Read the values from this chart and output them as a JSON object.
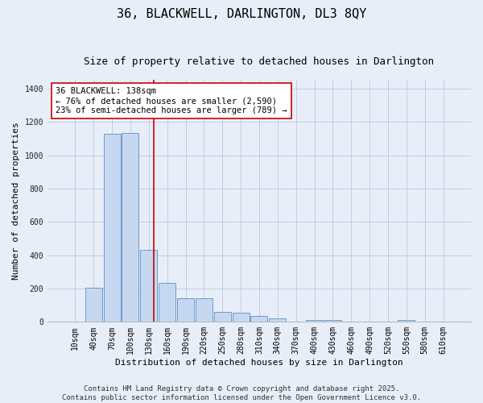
{
  "title": "36, BLACKWELL, DARLINGTON, DL3 8QY",
  "subtitle": "Size of property relative to detached houses in Darlington",
  "xlabel": "Distribution of detached houses by size in Darlington",
  "ylabel": "Number of detached properties",
  "bar_categories": [
    "10sqm",
    "40sqm",
    "70sqm",
    "100sqm",
    "130sqm",
    "160sqm",
    "190sqm",
    "220sqm",
    "250sqm",
    "280sqm",
    "310sqm",
    "340sqm",
    "370sqm",
    "400sqm",
    "430sqm",
    "460sqm",
    "490sqm",
    "520sqm",
    "550sqm",
    "580sqm",
    "610sqm"
  ],
  "bar_values": [
    0,
    205,
    1130,
    1135,
    430,
    235,
    140,
    140,
    60,
    55,
    35,
    20,
    0,
    12,
    12,
    0,
    0,
    0,
    12,
    0,
    0
  ],
  "bar_color": "#c5d8f0",
  "bar_edge_color": "#5b8fc9",
  "grid_color": "#b8c8e8",
  "background_color": "#e8eef8",
  "property_line_color": "#cc0000",
  "annotation_text": "36 BLACKWELL: 138sqm\n← 76% of detached houses are smaller (2,590)\n23% of semi-detached houses are larger (789) →",
  "annotation_box_color": "#ffffff",
  "annotation_box_edge": "#cc0000",
  "ylim": [
    0,
    1450
  ],
  "yticks": [
    0,
    200,
    400,
    600,
    800,
    1000,
    1200,
    1400
  ],
  "footer_line1": "Contains HM Land Registry data © Crown copyright and database right 2025.",
  "footer_line2": "Contains public sector information licensed under the Open Government Licence v3.0.",
  "title_fontsize": 11,
  "subtitle_fontsize": 9,
  "xlabel_fontsize": 8,
  "ylabel_fontsize": 8,
  "tick_fontsize": 7,
  "annotation_fontsize": 7.5,
  "footer_fontsize": 6.5
}
